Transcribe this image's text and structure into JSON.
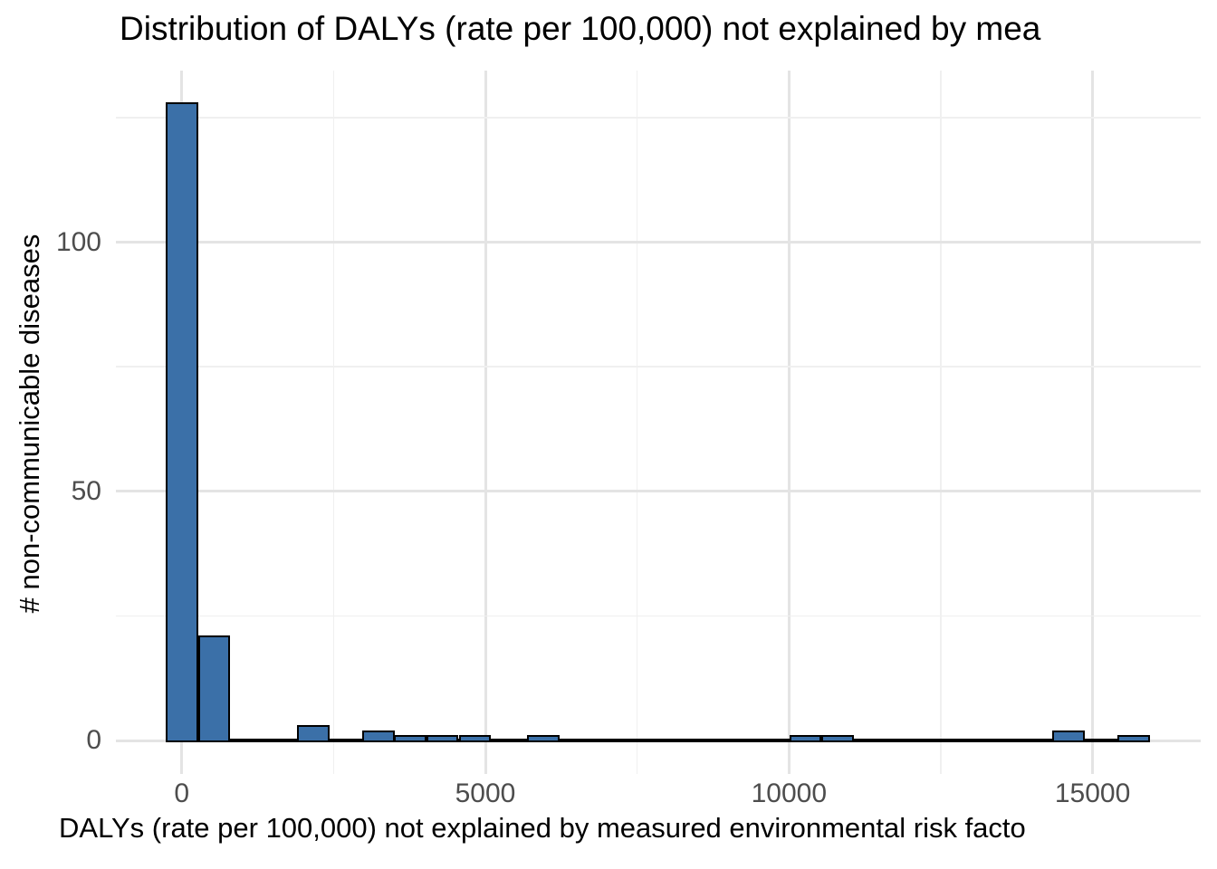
{
  "chart_data": {
    "type": "bar",
    "subtype": "histogram",
    "title": "Distribution of DALYs (rate per 100,000) not explained by mea",
    "xlabel": "DALYs (rate per 100,000) not explained by measured environmental risk facto",
    "ylabel": "# non-communicable diseases",
    "x_tick_values": [
      0,
      5000,
      10000,
      15000
    ],
    "x_tick_labels": [
      "0",
      "5000",
      "10000",
      "15000"
    ],
    "x_minor_values": [
      2500,
      7500,
      12500
    ],
    "y_tick_values": [
      0,
      50,
      100
    ],
    "y_tick_labels": [
      "0",
      "50",
      "100"
    ],
    "y_minor_values": [
      25,
      75,
      125
    ],
    "xlim": [
      -1080,
      16800
    ],
    "ylim": [
      -6.7,
      134.4
    ],
    "grid": "major+minor on white background",
    "legend": "none",
    "binwidth": 533,
    "bins": [
      {
        "center": 0,
        "count": 128
      },
      {
        "center": 533,
        "count": 21
      },
      {
        "center": 2167,
        "count": 3
      },
      {
        "center": 3240,
        "count": 2
      },
      {
        "center": 3760,
        "count": 1
      },
      {
        "center": 4290,
        "count": 1
      },
      {
        "center": 4830,
        "count": 1
      },
      {
        "center": 5950,
        "count": 1
      },
      {
        "center": 10270,
        "count": 1
      },
      {
        "center": 10800,
        "count": 1
      },
      {
        "center": 14600,
        "count": 2
      },
      {
        "center": 15680,
        "count": 1
      }
    ],
    "colors": {
      "bar_fill": "#3B70A8",
      "bar_stroke": "#000000",
      "grid_major": "#E4E4E4",
      "grid_minor": "#F0F0F0",
      "tick_label_text": "#4D4D4D",
      "title_text": "#000000",
      "background": "#FFFFFF"
    }
  }
}
